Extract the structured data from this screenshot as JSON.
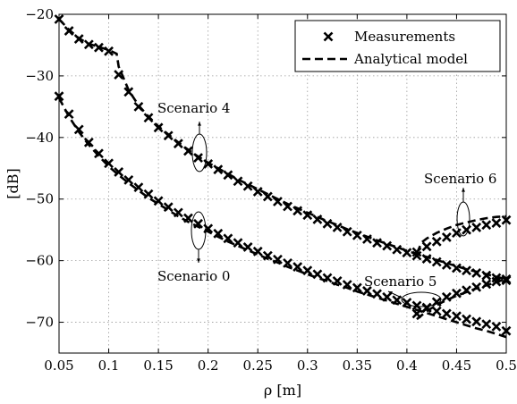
{
  "chart_data": {
    "type": "line",
    "xlabel": "ρ [m]",
    "ylabel": "[dB]",
    "xlim": [
      0.05,
      0.5
    ],
    "ylim": [
      -75,
      -20
    ],
    "x_ticks": [
      "0.05",
      "0.1",
      "0.15",
      "0.2",
      "0.25",
      "0.3",
      "0.35",
      "0.4",
      "0.45",
      "0.5"
    ],
    "x_tick_values": [
      0.05,
      0.1,
      0.15,
      0.2,
      0.25,
      0.3,
      0.35,
      0.4,
      0.45,
      0.5
    ],
    "y_ticks": [
      "−20",
      "−30",
      "−40",
      "−50",
      "−60",
      "−70"
    ],
    "y_tick_values": [
      -20,
      -30,
      -40,
      -50,
      -60,
      -70
    ],
    "grid": true,
    "legend": {
      "placement": "top-right",
      "entries": [
        {
          "label": "Measurements",
          "style": "x-marker"
        },
        {
          "label": "Analytical model",
          "style": "dashed-line"
        }
      ]
    },
    "annotations": [
      {
        "text": "Scenario 4",
        "x": 0.188,
        "y": -42
      },
      {
        "text": "Scenario 0",
        "x": 0.185,
        "y": -55
      },
      {
        "text": "Scenario 5",
        "x": 0.437,
        "y": -66
      },
      {
        "text": "Scenario 6",
        "x": 0.463,
        "y": -54.5
      }
    ],
    "series": [
      {
        "scenario": "Scenario 4 (meas.)",
        "kind": "measurements",
        "x": [
          0.05,
          0.06,
          0.07,
          0.08,
          0.09,
          0.1,
          0.11,
          0.12,
          0.13,
          0.14,
          0.15,
          0.16,
          0.17,
          0.18,
          0.19,
          0.2,
          0.21,
          0.22,
          0.23,
          0.24,
          0.25,
          0.26,
          0.27,
          0.28,
          0.29,
          0.3,
          0.31,
          0.32,
          0.33,
          0.34,
          0.35,
          0.36,
          0.37,
          0.38,
          0.39,
          0.4,
          0.41,
          0.42,
          0.43,
          0.44,
          0.45,
          0.46,
          0.47,
          0.48,
          0.49,
          0.5
        ],
        "y": [
          -20.8,
          -22.7,
          -24,
          -24.9,
          -25.4,
          -26,
          -29.8,
          -32.6,
          -35,
          -36.8,
          -38.4,
          -39.7,
          -41,
          -42.2,
          -43.3,
          -44.3,
          -45.2,
          -46.1,
          -47.1,
          -47.9,
          -48.8,
          -49.6,
          -50.4,
          -51.2,
          -51.9,
          -52.6,
          -53.3,
          -54,
          -54.6,
          -55.3,
          -55.9,
          -56.5,
          -57.1,
          -57.6,
          -58.2,
          -58.7,
          -59.2,
          -59.7,
          -60.2,
          -60.7,
          -61.2,
          -61.6,
          -62,
          -62.4,
          -62.8,
          -63.2
        ]
      },
      {
        "scenario": "Scenario 4 (model)",
        "kind": "model",
        "x": [
          0.05,
          0.06,
          0.07,
          0.08,
          0.09,
          0.1,
          0.108,
          0.11,
          0.12,
          0.13,
          0.14,
          0.15,
          0.16,
          0.17,
          0.18,
          0.19,
          0.2,
          0.21,
          0.22,
          0.23,
          0.24,
          0.25,
          0.26,
          0.27,
          0.28,
          0.29,
          0.3,
          0.31,
          0.32,
          0.33,
          0.34,
          0.35,
          0.36,
          0.37,
          0.38,
          0.39,
          0.4,
          0.41,
          0.42,
          0.43,
          0.44,
          0.45,
          0.46,
          0.47,
          0.48,
          0.49,
          0.5
        ],
        "y": [
          -20.8,
          -22.5,
          -23.9,
          -24.8,
          -25.3,
          -25.8,
          -26.4,
          -28.5,
          -32.3,
          -34.8,
          -36.6,
          -38.2,
          -39.5,
          -40.8,
          -42,
          -43.1,
          -44.1,
          -45,
          -45.9,
          -46.8,
          -47.6,
          -48.4,
          -49.2,
          -50,
          -50.8,
          -51.5,
          -52.2,
          -52.9,
          -53.6,
          -54.2,
          -54.9,
          -55.5,
          -56.1,
          -56.7,
          -57.3,
          -57.8,
          -58.4,
          -58.9,
          -59.4,
          -59.9,
          -60.4,
          -60.9,
          -61.4,
          -61.8,
          -62.2,
          -62.6,
          -63
        ]
      },
      {
        "scenario": "Scenario 0 (meas.)",
        "kind": "measurements",
        "x": [
          0.05,
          0.06,
          0.07,
          0.08,
          0.09,
          0.1,
          0.11,
          0.12,
          0.13,
          0.14,
          0.15,
          0.16,
          0.17,
          0.18,
          0.19,
          0.2,
          0.21,
          0.22,
          0.23,
          0.24,
          0.25,
          0.26,
          0.27,
          0.28,
          0.29,
          0.3,
          0.31,
          0.32,
          0.33,
          0.34,
          0.35,
          0.36,
          0.37,
          0.38,
          0.39,
          0.4,
          0.41,
          0.42,
          0.43,
          0.44,
          0.45,
          0.46,
          0.47,
          0.48,
          0.49,
          0.5
        ],
        "y": [
          -33.3,
          -36.2,
          -38.7,
          -40.8,
          -42.6,
          -44.2,
          -45.6,
          -46.9,
          -48.1,
          -49.2,
          -50.3,
          -51.3,
          -52.2,
          -53.1,
          -54,
          -54.8,
          -55.6,
          -56.4,
          -57.1,
          -57.8,
          -58.5,
          -59.2,
          -59.8,
          -60.4,
          -61,
          -61.6,
          -62.2,
          -62.8,
          -63.3,
          -63.9,
          -64.4,
          -64.9,
          -65.4,
          -65.9,
          -66.4,
          -66.8,
          -67.3,
          -67.7,
          -68.2,
          -68.6,
          -69,
          -69.5,
          -69.9,
          -70.3,
          -70.7,
          -71.4
        ]
      },
      {
        "scenario": "Scenario 0 (model)",
        "kind": "model",
        "x": [
          0.05,
          0.06,
          0.07,
          0.08,
          0.09,
          0.1,
          0.11,
          0.12,
          0.13,
          0.14,
          0.15,
          0.16,
          0.17,
          0.18,
          0.19,
          0.2,
          0.21,
          0.22,
          0.23,
          0.24,
          0.25,
          0.26,
          0.27,
          0.28,
          0.29,
          0.3,
          0.31,
          0.32,
          0.33,
          0.34,
          0.35,
          0.36,
          0.37,
          0.38,
          0.39,
          0.4,
          0.41,
          0.42,
          0.43,
          0.44,
          0.45,
          0.46,
          0.47,
          0.48,
          0.49,
          0.5
        ],
        "y": [
          -33.6,
          -36.6,
          -39.1,
          -41.2,
          -43,
          -44.7,
          -46.1,
          -47.4,
          -48.6,
          -49.8,
          -50.8,
          -51.8,
          -52.8,
          -53.7,
          -54.5,
          -55.3,
          -56.1,
          -56.9,
          -57.6,
          -58.3,
          -59,
          -59.7,
          -60.3,
          -61,
          -61.6,
          -62.2,
          -62.8,
          -63.3,
          -63.9,
          -64.4,
          -65,
          -65.5,
          -66,
          -66.5,
          -67,
          -67.5,
          -68,
          -68.5,
          -69,
          -69.5,
          -70,
          -70.5,
          -71,
          -71.4,
          -71.9,
          -72.4
        ]
      },
      {
        "scenario": "Scenario 6 (meas.)",
        "kind": "measurements",
        "x": [
          0.41,
          0.42,
          0.43,
          0.44,
          0.45,
          0.46,
          0.47,
          0.48,
          0.49,
          0.5
        ],
        "y": [
          -58.6,
          -57.7,
          -56.9,
          -56.2,
          -55.5,
          -55,
          -54.6,
          -54.2,
          -53.9,
          -53.4
        ]
      },
      {
        "scenario": "Scenario 6 (model)",
        "kind": "model",
        "x": [
          0.41,
          0.415,
          0.42,
          0.43,
          0.44,
          0.45,
          0.46,
          0.47,
          0.48,
          0.49,
          0.5
        ],
        "y": [
          -58.8,
          -57,
          -56.4,
          -55.5,
          -54.8,
          -54.2,
          -53.8,
          -53.4,
          -53.1,
          -52.9,
          -52.8
        ]
      },
      {
        "scenario": "Scenario 5 (meas.)",
        "kind": "measurements",
        "x": [
          0.41,
          0.42,
          0.43,
          0.44,
          0.45,
          0.46,
          0.47,
          0.48,
          0.49,
          0.5
        ],
        "y": [
          -68.6,
          -67.6,
          -66.7,
          -65.9,
          -65.3,
          -64.8,
          -64.3,
          -63.8,
          -63.4,
          -63
        ]
      },
      {
        "scenario": "Scenario 5 (model)",
        "kind": "model",
        "x": [
          0.41,
          0.42,
          0.43,
          0.44,
          0.45,
          0.46,
          0.47,
          0.48,
          0.49,
          0.5
        ],
        "y": [
          -69.5,
          -68.2,
          -67.2,
          -66.4,
          -65.7,
          -65.1,
          -64.5,
          -64,
          -63.5,
          -62.9
        ]
      }
    ]
  }
}
